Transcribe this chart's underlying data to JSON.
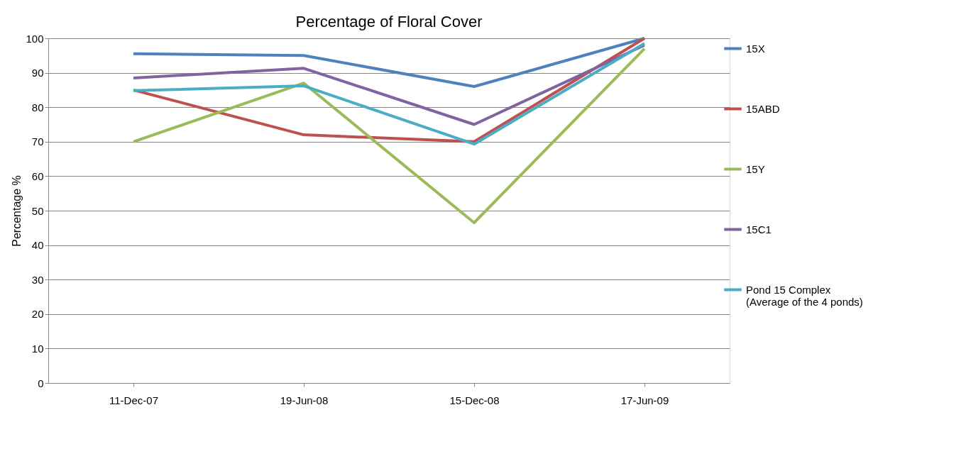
{
  "chart_data": {
    "type": "line",
    "title": "Percentage of Floral Cover",
    "ylabel": "Percentage %",
    "categories": [
      "11-Dec-07",
      "19-Jun-08",
      "15-Dec-08",
      "17-Jun-09"
    ],
    "series": [
      {
        "name": "15X",
        "color": "#4f81bd",
        "values": [
          95.5,
          95,
          86,
          100
        ]
      },
      {
        "name": "15ABD",
        "color": "#c0504d",
        "values": [
          85,
          72,
          70,
          100
        ]
      },
      {
        "name": "15Y",
        "color": "#9bbb59",
        "values": [
          70,
          87,
          46.5,
          97
        ]
      },
      {
        "name": "15C1",
        "color": "#8064a2",
        "values": [
          88.5,
          91.3,
          75,
          98
        ]
      },
      {
        "name": "Pond 15 Complex\n(Average of the 4 ponds)",
        "color": "#4bacc6",
        "values": [
          84.8,
          86.2,
          69.3,
          98.5
        ]
      }
    ],
    "ylim": [
      0,
      100
    ],
    "yticks": [
      0,
      10,
      20,
      30,
      40,
      50,
      60,
      70,
      80,
      90,
      100
    ],
    "grid": "y",
    "legend": "right",
    "marker": "none",
    "line_style": "solid"
  }
}
